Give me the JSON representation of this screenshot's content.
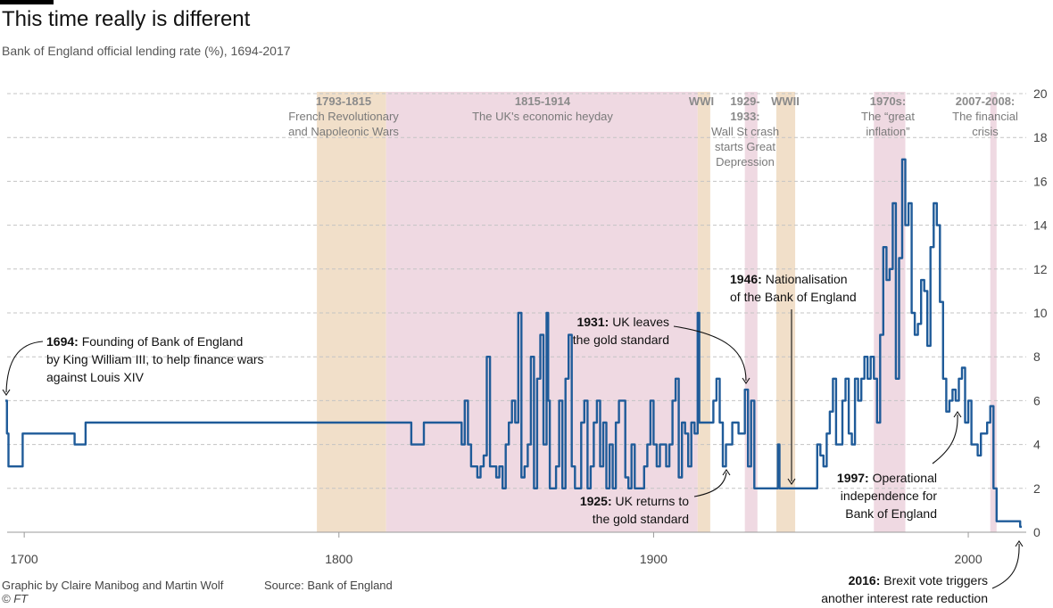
{
  "header": {
    "title": "This time really is different",
    "subtitle": "Bank of England official lending rate (%), 1694-2017"
  },
  "footer": {
    "credit": "Graphic by Claire Manibog and Martin Wolf",
    "source": "Source: Bank of England",
    "copyright": "© FT"
  },
  "colors": {
    "line": "#1f5b99",
    "war": "#f1dfc9",
    "peace": "#efd9e2",
    "grid": "#c4c4c4"
  },
  "chart_data": {
    "type": "line",
    "title": "This time really is different",
    "subtitle": "Bank of England official lending rate (%), 1694-2017",
    "xlabel": "",
    "ylabel": "%",
    "xlim": [
      1694,
      2017
    ],
    "ylim": [
      0,
      20
    ],
    "yticks": [
      0,
      2,
      4,
      6,
      8,
      10,
      12,
      14,
      16,
      18,
      20
    ],
    "xticks": [
      1700,
      1800,
      1900,
      2000
    ],
    "series": [
      {
        "name": "Bank of England official lending rate (%)",
        "points": [
          [
            1694,
            6
          ],
          [
            1694.5,
            4.5
          ],
          [
            1695,
            3
          ],
          [
            1699,
            3
          ],
          [
            1699.5,
            4.5
          ],
          [
            1714,
            4.5
          ],
          [
            1716,
            4
          ],
          [
            1719,
            4
          ],
          [
            1719.5,
            5
          ],
          [
            1796,
            5
          ],
          [
            1822,
            5
          ],
          [
            1823,
            4
          ],
          [
            1826,
            4
          ],
          [
            1827,
            5
          ],
          [
            1838,
            5
          ],
          [
            1839,
            4
          ],
          [
            1840,
            6
          ],
          [
            1841,
            4
          ],
          [
            1842,
            3
          ],
          [
            1844,
            2.5
          ],
          [
            1845,
            3
          ],
          [
            1846,
            3.5
          ],
          [
            1847,
            8
          ],
          [
            1848,
            3
          ],
          [
            1849,
            3
          ],
          [
            1850,
            2.5
          ],
          [
            1851,
            3
          ],
          [
            1852,
            2
          ],
          [
            1853,
            4
          ],
          [
            1854,
            5
          ],
          [
            1855,
            6
          ],
          [
            1856,
            5
          ],
          [
            1857,
            10
          ],
          [
            1858,
            2.5
          ],
          [
            1859,
            3
          ],
          [
            1860,
            4
          ],
          [
            1861,
            8
          ],
          [
            1862,
            2
          ],
          [
            1863,
            7
          ],
          [
            1864,
            9
          ],
          [
            1865,
            4
          ],
          [
            1866,
            10
          ],
          [
            1866.5,
            6
          ],
          [
            1867,
            2
          ],
          [
            1868,
            2
          ],
          [
            1869,
            3
          ],
          [
            1870,
            6
          ],
          [
            1871,
            2
          ],
          [
            1872,
            7
          ],
          [
            1873,
            9
          ],
          [
            1874,
            3
          ],
          [
            1875,
            2
          ],
          [
            1876,
            2
          ],
          [
            1877,
            5
          ],
          [
            1878,
            6
          ],
          [
            1879,
            2
          ],
          [
            1880,
            3
          ],
          [
            1881,
            5
          ],
          [
            1882,
            6
          ],
          [
            1883,
            3
          ],
          [
            1884,
            5
          ],
          [
            1885,
            2
          ],
          [
            1886,
            4
          ],
          [
            1887,
            2
          ],
          [
            1888,
            5
          ],
          [
            1889,
            6
          ],
          [
            1890,
            6
          ],
          [
            1891,
            2.5
          ],
          [
            1892,
            2
          ],
          [
            1893,
            4
          ],
          [
            1894,
            2
          ],
          [
            1895,
            2
          ],
          [
            1896,
            2
          ],
          [
            1897,
            3
          ],
          [
            1898,
            4
          ],
          [
            1899,
            6
          ],
          [
            1900,
            4
          ],
          [
            1901,
            3
          ],
          [
            1902,
            4
          ],
          [
            1903,
            4
          ],
          [
            1904,
            3
          ],
          [
            1905,
            4
          ],
          [
            1906,
            6
          ],
          [
            1907,
            7
          ],
          [
            1908,
            2.5
          ],
          [
            1909,
            5
          ],
          [
            1910,
            4.5
          ],
          [
            1911,
            3
          ],
          [
            1912,
            5
          ],
          [
            1913,
            4.5
          ],
          [
            1914,
            10
          ],
          [
            1914.5,
            5
          ],
          [
            1918,
            5
          ],
          [
            1919,
            6
          ],
          [
            1920,
            7
          ],
          [
            1921,
            5
          ],
          [
            1922,
            3
          ],
          [
            1923,
            4
          ],
          [
            1924,
            4
          ],
          [
            1925,
            5
          ],
          [
            1926,
            5
          ],
          [
            1927,
            4.5
          ],
          [
            1928,
            4.5
          ],
          [
            1929,
            6.5
          ],
          [
            1930,
            3
          ],
          [
            1931,
            6
          ],
          [
            1932,
            2
          ],
          [
            1939,
            2
          ],
          [
            1939.5,
            4
          ],
          [
            1940,
            2
          ],
          [
            1951,
            2
          ],
          [
            1952,
            4
          ],
          [
            1953,
            3.5
          ],
          [
            1954,
            3
          ],
          [
            1955,
            4.5
          ],
          [
            1956,
            5.5
          ],
          [
            1957,
            7
          ],
          [
            1958,
            4
          ],
          [
            1959,
            4
          ],
          [
            1960,
            6
          ],
          [
            1961,
            7
          ],
          [
            1962,
            4.5
          ],
          [
            1963,
            4
          ],
          [
            1964,
            7
          ],
          [
            1965,
            6
          ],
          [
            1966,
            7
          ],
          [
            1967,
            8
          ],
          [
            1968,
            7
          ],
          [
            1969,
            8
          ],
          [
            1970,
            7
          ],
          [
            1971,
            5
          ],
          [
            1972,
            9
          ],
          [
            1973,
            13
          ],
          [
            1974,
            11.5
          ],
          [
            1975,
            12
          ],
          [
            1976,
            15
          ],
          [
            1977,
            7
          ],
          [
            1978,
            12.5
          ],
          [
            1979,
            17
          ],
          [
            1980,
            14
          ],
          [
            1981,
            15
          ],
          [
            1982,
            10
          ],
          [
            1983,
            9
          ],
          [
            1984,
            9.5
          ],
          [
            1985,
            11.5
          ],
          [
            1986,
            11
          ],
          [
            1987,
            8.5
          ],
          [
            1988,
            13
          ],
          [
            1989,
            15
          ],
          [
            1990,
            14
          ],
          [
            1991,
            10.5
          ],
          [
            1992,
            7
          ],
          [
            1993,
            5.5
          ],
          [
            1994,
            6
          ],
          [
            1995,
            6.5
          ],
          [
            1996,
            6
          ],
          [
            1997,
            7
          ],
          [
            1998,
            7.5
          ],
          [
            1999,
            5
          ],
          [
            2000,
            6
          ],
          [
            2001,
            4
          ],
          [
            2002,
            4
          ],
          [
            2003,
            3.5
          ],
          [
            2004,
            4.5
          ],
          [
            2005,
            4.5
          ],
          [
            2006,
            5
          ],
          [
            2007,
            5.75
          ],
          [
            2008,
            2
          ],
          [
            2009,
            0.5
          ],
          [
            2016,
            0.5
          ],
          [
            2016.5,
            0.25
          ],
          [
            2017,
            0.25
          ]
        ]
      }
    ],
    "shaded_periods": [
      {
        "start": 1793,
        "end": 1815,
        "kind": "war",
        "label_bold": "1793-1815",
        "label": [
          "French Revolutionary",
          "and Napoleonic Wars"
        ]
      },
      {
        "start": 1815,
        "end": 1914,
        "kind": "peace",
        "label_bold": "1815-1914",
        "label": [
          "The UK's economic heyday"
        ]
      },
      {
        "start": 1914,
        "end": 1918,
        "kind": "war",
        "label_bold": "WWI",
        "label": []
      },
      {
        "start": 1929,
        "end": 1933,
        "kind": "peace",
        "label_bold": "1929-",
        "label_bold2": "1933:",
        "label": [
          "Wall St crash",
          "starts Great",
          "Depression"
        ]
      },
      {
        "start": 1939,
        "end": 1945,
        "kind": "war",
        "label_bold": "WWII",
        "label": []
      },
      {
        "start": 1970,
        "end": 1980,
        "kind": "peace",
        "label_bold": "1970s:",
        "label": [
          "The “great",
          "inflation”"
        ]
      },
      {
        "start": 2007,
        "end": 2009,
        "kind": "peace",
        "label_bold": "2007-2008:",
        "label": [
          "The financial",
          "crisis"
        ]
      }
    ],
    "annotations": [
      {
        "year_bold": "1694:",
        "lines": [
          "Founding of Bank of England",
          "by King William III, to help finance wars",
          "against Louis XIV"
        ]
      },
      {
        "year_bold": "1931:",
        "lines": [
          "UK leaves",
          "the gold standard"
        ]
      },
      {
        "year_bold": "1946:",
        "lines": [
          "Nationalisation",
          "of the Bank of England"
        ]
      },
      {
        "year_bold": "1925:",
        "lines": [
          "UK returns to",
          "the gold standard"
        ]
      },
      {
        "year_bold": "1997:",
        "lines": [
          "Operational",
          "independence for",
          "Bank of England"
        ]
      },
      {
        "year_bold": "2016:",
        "lines": [
          "Brexit vote triggers",
          "another interest rate reduction"
        ]
      }
    ]
  }
}
